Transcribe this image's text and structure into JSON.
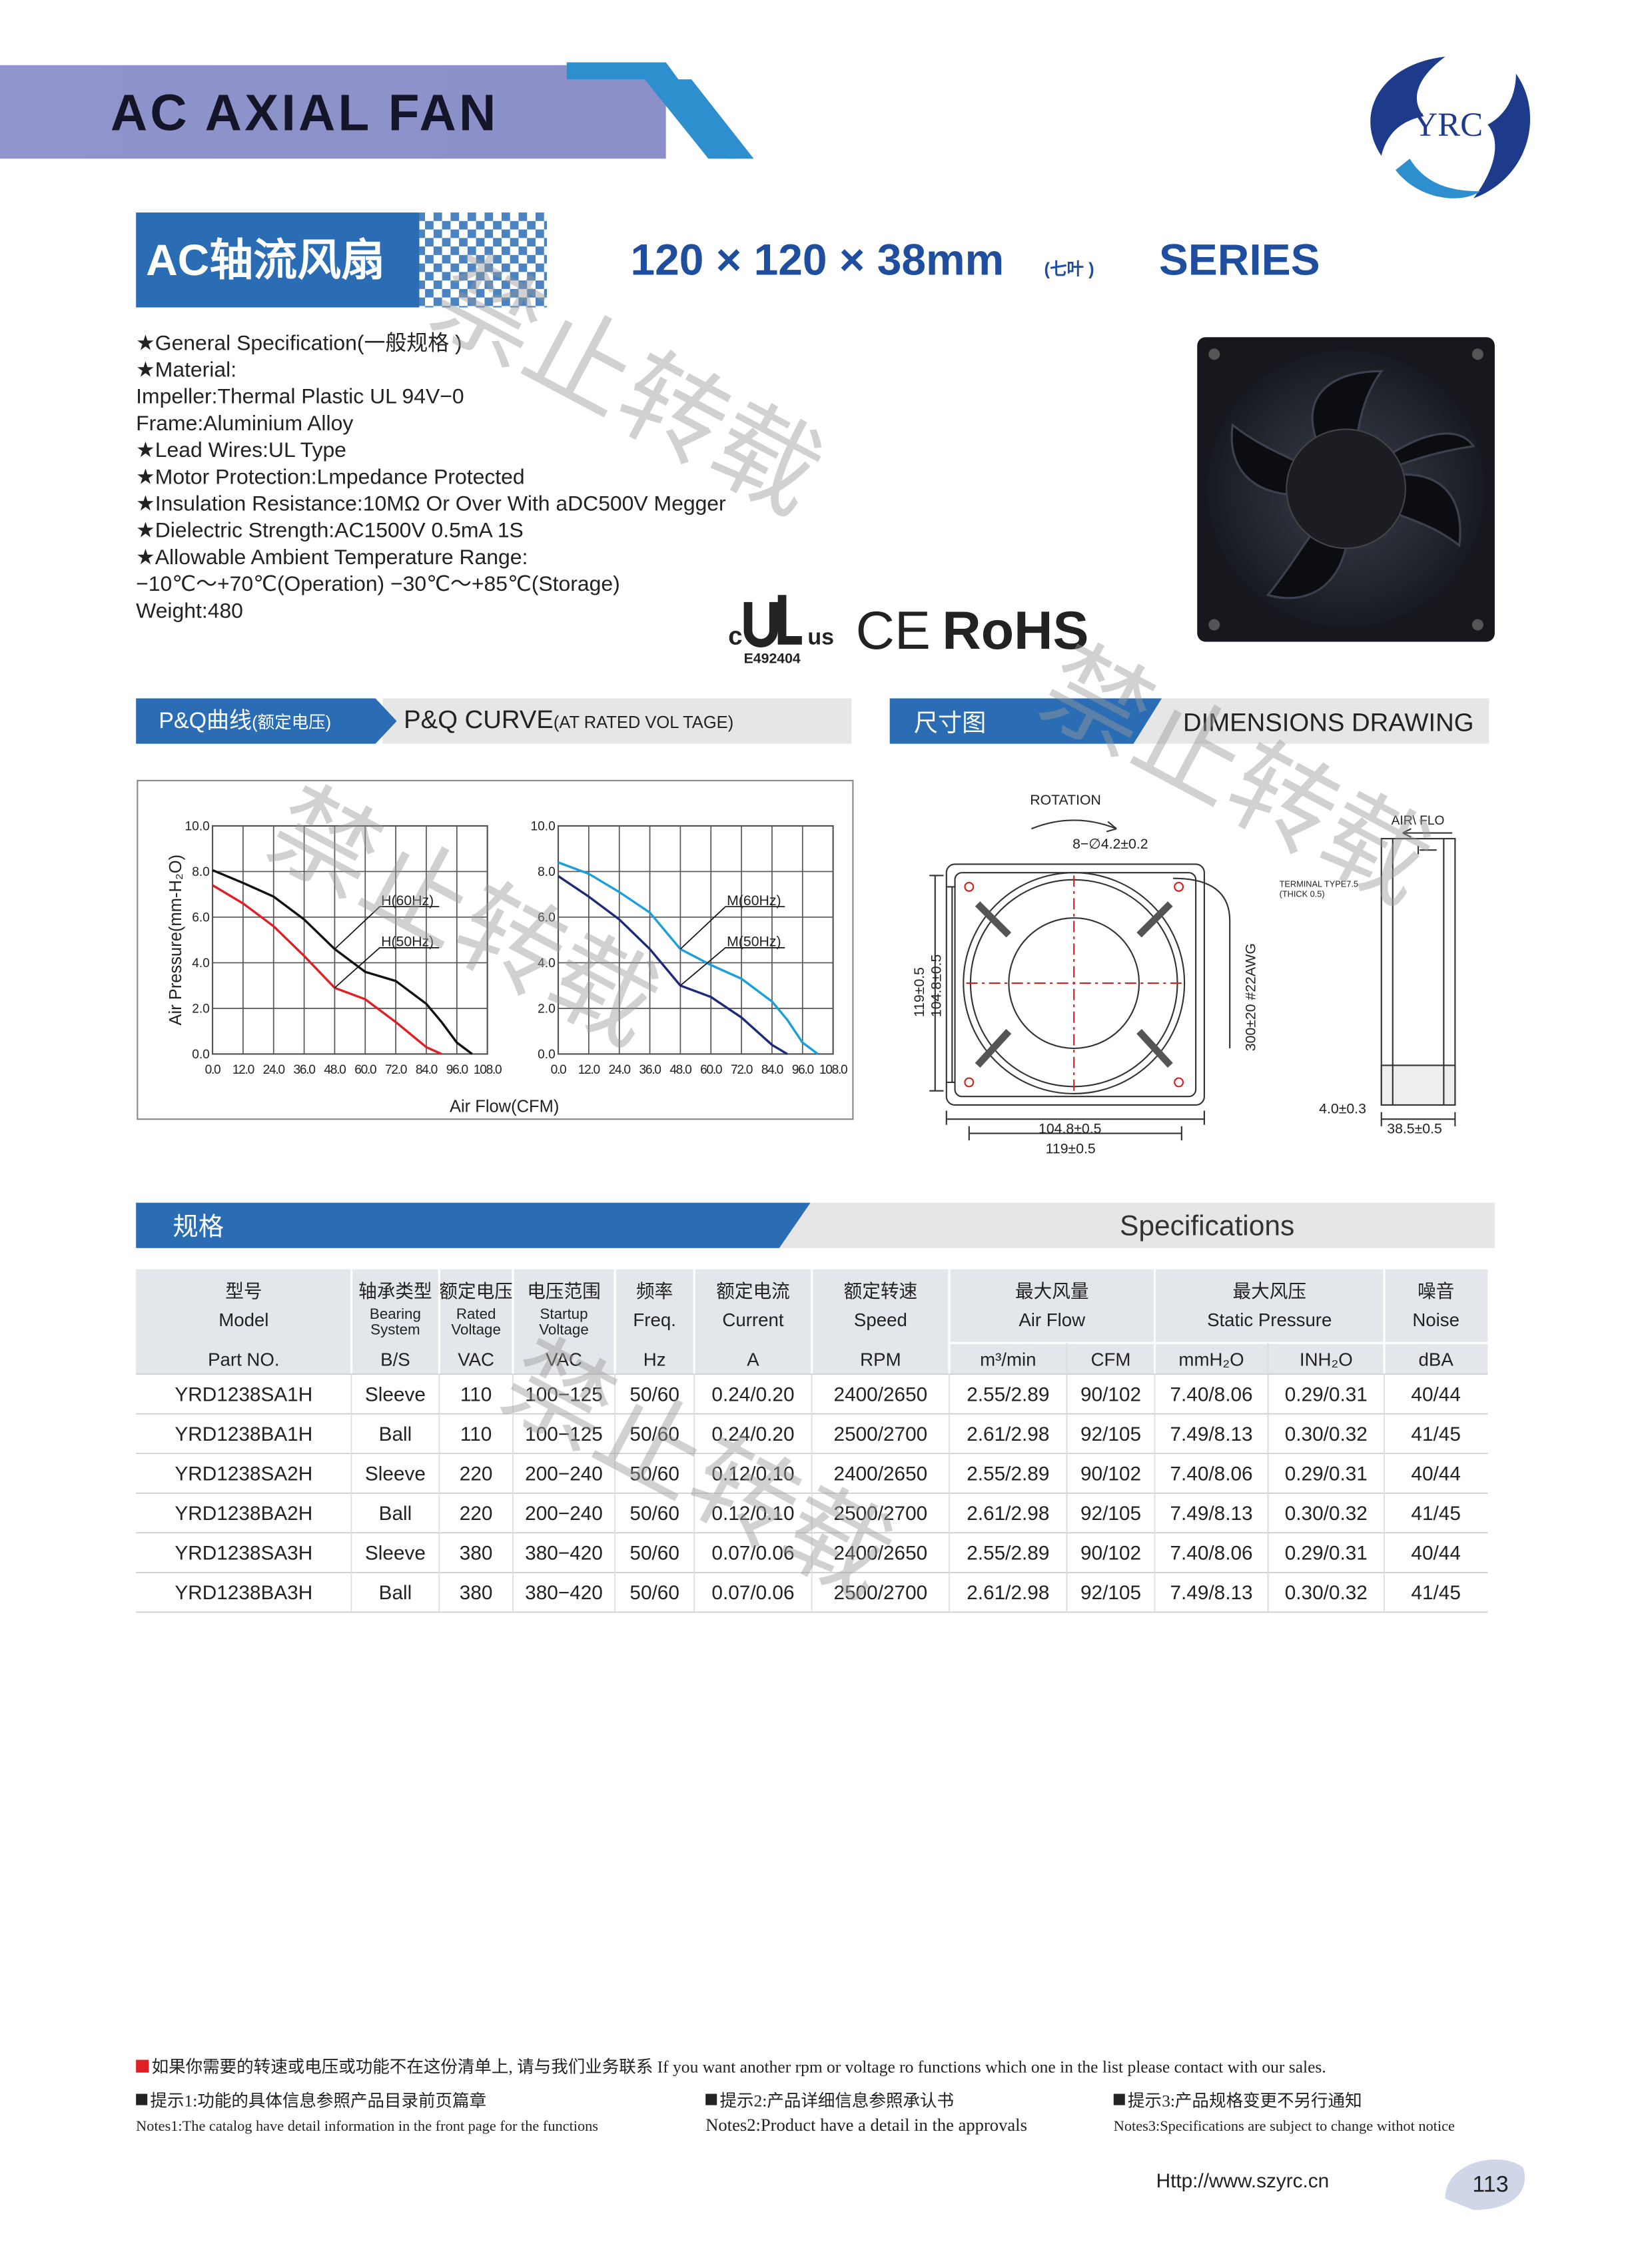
{
  "header": {
    "title": "AC AXIAL FAN",
    "logo": "YRC"
  },
  "product": {
    "badge": "AC轴流风扇",
    "size": "120 × 120 × 38mm",
    "blades": "(七叶 )",
    "series": "SERIES"
  },
  "spec": {
    "lines": [
      "★General Specification(一般规格 )",
      "★Material:",
      "Impeller:Thermal Plastic UL 94V−0",
      "Frame:Aluminium Alloy",
      "★Lead Wires:UL Type",
      "★Motor Protection:Lmpedance Protected",
      "★Insulation Resistance:10MΩ  Or Over With aDC500V Megger",
      "★Dielectric Strength:AC1500V 0.5mA 1S",
      "★Allowable Ambient Temperature Range:",
      "−10℃～+70℃(Operation)  −30℃～+85℃(Storage)",
      "Weight:480"
    ]
  },
  "certs": {
    "ul_c": "c",
    "ul_us": "us",
    "ul_number": "E492404",
    "ce": "CE",
    "rohs": "RoHS"
  },
  "watermark": "禁止转载",
  "pq_section": {
    "label_cn": "P&Q曲线",
    "label_cn_note": "(额定电压)",
    "label_en": "P&Q CURVE",
    "label_en_note": "(AT RATED VOL TAGE)"
  },
  "dims_section": {
    "label_cn": "尺寸图",
    "label_en": "DIMENSIONS  DRAWING"
  },
  "chart_data": [
    {
      "type": "line",
      "ylabel": "Air Pressure(mm-H₂O)",
      "xlabel": "Air Flow(CFM)",
      "x": [
        0,
        12,
        24,
        36,
        48,
        60,
        72,
        84,
        90,
        96,
        102
      ],
      "series": [
        {
          "name": "H(60Hz)",
          "color": "#111111",
          "values": [
            8.06,
            7.5,
            6.9,
            5.9,
            4.6,
            3.6,
            3.2,
            2.2,
            1.4,
            0.5,
            0
          ]
        },
        {
          "name": "H(50Hz)",
          "color": "#e01e24",
          "values": [
            7.4,
            6.6,
            5.6,
            4.3,
            2.9,
            2.4,
            1.4,
            0.3,
            0,
            null,
            null
          ]
        }
      ],
      "xlim": [
        0,
        108
      ],
      "ylim": [
        0,
        10
      ],
      "xticks": [
        {
          "value": 0,
          "label": "0.0"
        },
        {
          "value": 12,
          "label": "12.0"
        },
        {
          "value": 24,
          "label": "24.0"
        },
        {
          "value": 36,
          "label": "36.0"
        },
        {
          "value": 48,
          "label": "48.0"
        },
        {
          "value": 60,
          "label": "60.0"
        },
        {
          "value": 72,
          "label": "72.0"
        },
        {
          "value": 84,
          "label": "84.0"
        },
        {
          "value": 96,
          "label": "96.0"
        },
        {
          "value": 108,
          "label": "108.0"
        }
      ],
      "yticks": [
        {
          "value": 0,
          "label": "0.0"
        },
        {
          "value": 2,
          "label": "2.0"
        },
        {
          "value": 4,
          "label": "4.0"
        },
        {
          "value": 6,
          "label": "6.0"
        },
        {
          "value": 8,
          "label": "8.0"
        },
        {
          "value": 10,
          "label": "10.0"
        }
      ],
      "grid": true
    },
    {
      "type": "line",
      "x": [
        0,
        12,
        24,
        36,
        48,
        60,
        72,
        84,
        90,
        96,
        102
      ],
      "series": [
        {
          "name": "M(60Hz)",
          "color": "#1aa0d8",
          "values": [
            8.4,
            7.9,
            7.1,
            6.2,
            4.6,
            3.9,
            3.3,
            2.3,
            1.5,
            0.5,
            0
          ]
        },
        {
          "name": "M(50Hz)",
          "color": "#1d2a7a",
          "values": [
            7.8,
            6.9,
            5.9,
            4.6,
            3.0,
            2.5,
            1.6,
            0.4,
            0,
            null,
            null
          ]
        }
      ],
      "xlim": [
        0,
        108
      ],
      "ylim": [
        0,
        10
      ],
      "xticks": [
        {
          "value": 0,
          "label": "0.0"
        },
        {
          "value": 12,
          "label": "12.0"
        },
        {
          "value": 24,
          "label": "24.0"
        },
        {
          "value": 36,
          "label": "36.0"
        },
        {
          "value": 48,
          "label": "48.0"
        },
        {
          "value": 60,
          "label": "60.0"
        },
        {
          "value": 72,
          "label": "72.0"
        },
        {
          "value": 84,
          "label": "84.0"
        },
        {
          "value": 96,
          "label": "96.0"
        },
        {
          "value": 108,
          "label": "108.0"
        }
      ],
      "yticks": [
        {
          "value": 0,
          "label": "0.0"
        },
        {
          "value": 2,
          "label": "2.0"
        },
        {
          "value": 4,
          "label": "4.0"
        },
        {
          "value": 6,
          "label": "6.0"
        },
        {
          "value": 8,
          "label": "8.0"
        },
        {
          "value": 10,
          "label": "10.0"
        }
      ],
      "grid": true
    }
  ],
  "dimensions": {
    "rotation": "ROTATION",
    "holes": "8−∅4.2±0.2",
    "height_outer": "119±0.5",
    "height_inner": "104.8±0.5",
    "width_inner": "104.8±0.5",
    "width_outer": "119±0.5",
    "wire": "300±20  #22AWG",
    "airflow": "AIR\\ FLO",
    "terminal": "TERMINAL TYPE7.5",
    "terminal_thick": "(THICK  0.5)",
    "flange": "4.0±0.3",
    "depth": "38.5±0.5"
  },
  "spec_section": {
    "label_cn": "规格",
    "label_en": "Specifications"
  },
  "table": {
    "header": [
      {
        "cn": "型号",
        "en": [
          "Model"
        ]
      },
      {
        "cn": "轴承类型",
        "en": [
          "Bearing",
          "System"
        ]
      },
      {
        "cn": "额定电压",
        "en": [
          "Rated",
          "Voltage"
        ]
      },
      {
        "cn": "电压范围",
        "en": [
          "Startup",
          "Voltage"
        ]
      },
      {
        "cn": "频率",
        "en": [
          "Freq."
        ]
      },
      {
        "cn": "额定电流",
        "en": [
          "Current"
        ]
      },
      {
        "cn": "额定转速",
        "en": [
          "Speed"
        ]
      },
      {
        "cn": "最大风量",
        "en": [
          "Air Flow"
        ]
      },
      {
        "cn": "最大风压",
        "en": [
          "Static Pressure"
        ]
      },
      {
        "cn": "噪音",
        "en": [
          "Noise"
        ]
      }
    ],
    "units": [
      "Part NO.",
      "B/S",
      "VAC",
      "VAC",
      "Hz",
      "A",
      "RPM",
      "m³/min",
      "CFM",
      "mmH₂O",
      "INH₂O",
      "dBA"
    ],
    "rows": [
      [
        "YRD1238SA1H",
        "Sleeve",
        "110",
        "100−125",
        "50/60",
        "0.24/0.20",
        "2400/2650",
        "2.55/2.89",
        "90/102",
        "7.40/8.06",
        "0.29/0.31",
        "40/44"
      ],
      [
        "YRD1238BA1H",
        "Ball",
        "110",
        "100−125",
        "50/60",
        "0.24/0.20",
        "2500/2700",
        "2.61/2.98",
        "92/105",
        "7.49/8.13",
        "0.30/0.32",
        "41/45"
      ],
      [
        "YRD1238SA2H",
        "Sleeve",
        "220",
        "200−240",
        "50/60",
        "0.12/0.10",
        "2400/2650",
        "2.55/2.89",
        "90/102",
        "7.40/8.06",
        "0.29/0.31",
        "40/44"
      ],
      [
        "YRD1238BA2H",
        "Ball",
        "220",
        "200−240",
        "50/60",
        "0.12/0.10",
        "2500/2700",
        "2.61/2.98",
        "92/105",
        "7.49/8.13",
        "0.30/0.32",
        "41/45"
      ],
      [
        "YRD1238SA3H",
        "Sleeve",
        "380",
        "380−420",
        "50/60",
        "0.07/0.06",
        "2400/2650",
        "2.55/2.89",
        "90/102",
        "7.40/8.06",
        "0.29/0.31",
        "40/44"
      ],
      [
        "YRD1238BA3H",
        "Ball",
        "380",
        "380−420",
        "50/60",
        "0.07/0.06",
        "2500/2700",
        "2.61/2.98",
        "92/105",
        "7.49/8.13",
        "0.30/0.32",
        "41/45"
      ]
    ]
  },
  "footer": {
    "contact": "如果你需要的转速或电压或功能不在这份清单上, 请与我们业务联系 If you want another rpm or voltage ro functions which one in the list please contact with our sales.",
    "notes": [
      {
        "cn": "提示1:功能的具体信息参照产品目录前页篇章",
        "en": "Notes1:The catalog have detail information in the front page for the functions"
      },
      {
        "cn": "提示2:产品详细信息参照承认书",
        "en": "Notes2:Product have a detail in the approvals"
      },
      {
        "cn": "提示3:产品规格变更不另行通知",
        "en": "Notes3:Specifications are subject to change withot notice"
      }
    ],
    "url": "Http://www.szyrc.cn",
    "page": "113"
  }
}
